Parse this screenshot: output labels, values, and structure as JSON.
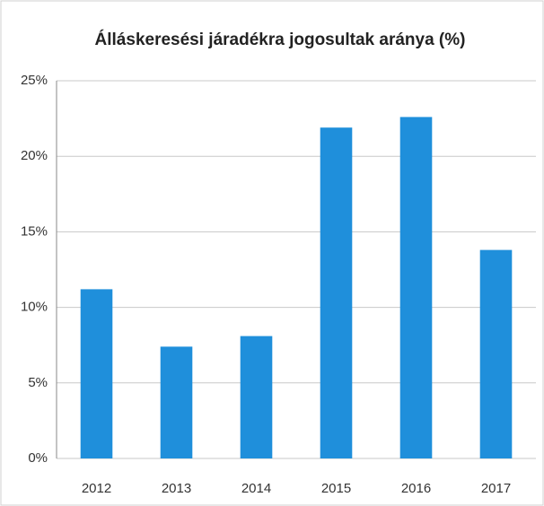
{
  "chart_data": {
    "type": "bar",
    "title": "Álláskeresési járadékra jogosultak aránya (%)",
    "categories": [
      "2012",
      "2013",
      "2014",
      "2015",
      "2016",
      "2017"
    ],
    "values": [
      11.2,
      7.4,
      8.1,
      21.9,
      22.6,
      13.8
    ],
    "color": "#1f8fdb",
    "ylim": [
      0,
      25
    ],
    "yticks": [
      {
        "value": 0,
        "label": "0%"
      },
      {
        "value": 5,
        "label": "5%"
      },
      {
        "value": 10,
        "label": "10%"
      },
      {
        "value": 15,
        "label": "15%"
      },
      {
        "value": 20,
        "label": "20%"
      },
      {
        "value": 25,
        "label": "25%"
      }
    ],
    "grid": true
  }
}
